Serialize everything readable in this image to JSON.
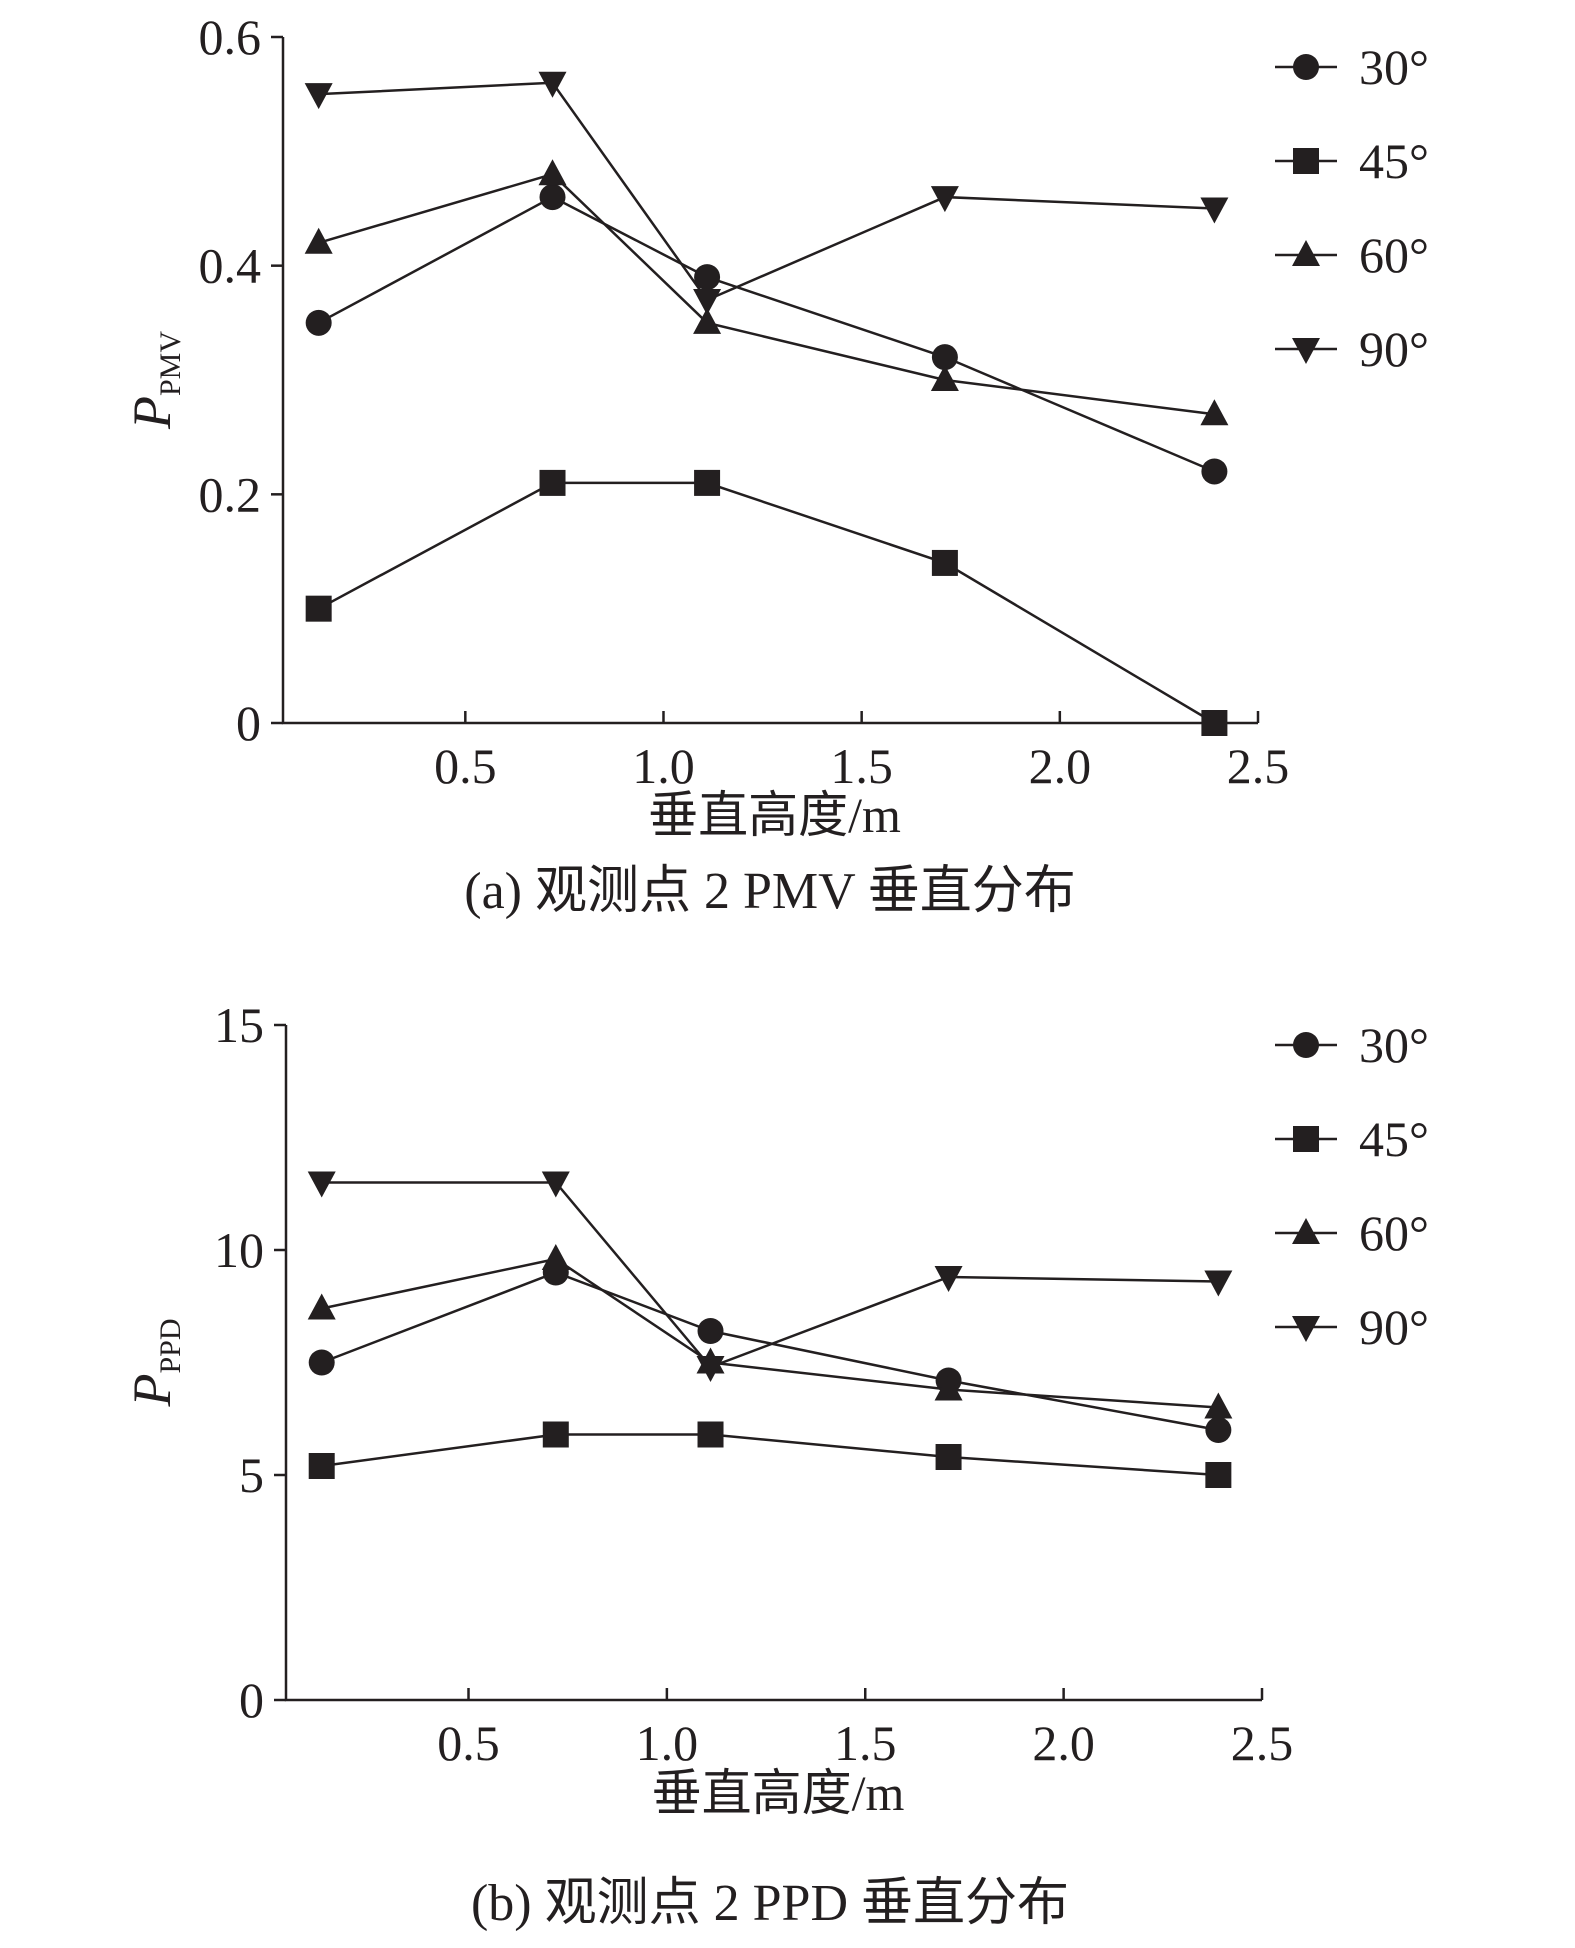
{
  "chart_data": [
    {
      "type": "line",
      "caption": "(a) 观测点 2 PMV 垂直分布",
      "xlabel": "垂直高度/m",
      "ylabel": "P",
      "ylabel_sub": "PMV",
      "xlim": [
        0.04,
        2.5
      ],
      "ylim": [
        0,
        0.6
      ],
      "xticks": [
        0.5,
        1.0,
        1.5,
        2.0,
        2.5
      ],
      "xtick_labels": [
        "0.5",
        "1.0",
        "1.5",
        "2.0",
        "2.5"
      ],
      "yticks": [
        0,
        0.2,
        0.4,
        0.6
      ],
      "ytick_labels": [
        "0",
        "0.2",
        "0.4",
        "0.6"
      ],
      "x": [
        0.13,
        0.72,
        1.11,
        1.71,
        2.39
      ],
      "legend_position": "top-right",
      "series": [
        {
          "name": "30°",
          "marker": "circle",
          "values": [
            0.35,
            0.46,
            0.39,
            0.32,
            0.22
          ]
        },
        {
          "name": "45°",
          "marker": "square",
          "values": [
            0.1,
            0.21,
            0.21,
            0.14,
            0.0
          ]
        },
        {
          "name": "60°",
          "marker": "triangle-up",
          "values": [
            0.42,
            0.48,
            0.35,
            0.3,
            0.27
          ]
        },
        {
          "name": "90°",
          "marker": "triangle-down",
          "values": [
            0.55,
            0.56,
            0.37,
            0.46,
            0.45
          ]
        }
      ]
    },
    {
      "type": "line",
      "caption": "(b) 观测点 2 PPD 垂直分布",
      "xlabel": "垂直高度/m",
      "ylabel": "P",
      "ylabel_sub": "PPD",
      "xlim": [
        0.04,
        2.5
      ],
      "ylim": [
        0,
        15
      ],
      "xticks": [
        0.5,
        1.0,
        1.5,
        2.0,
        2.5
      ],
      "xtick_labels": [
        "0.5",
        "1.0",
        "1.5",
        "2.0",
        "2.5"
      ],
      "yticks": [
        0,
        5,
        10,
        15
      ],
      "ytick_labels": [
        "0",
        "5",
        "10",
        "15"
      ],
      "x": [
        0.13,
        0.72,
        1.11,
        1.71,
        2.39
      ],
      "legend_position": "top-right",
      "series": [
        {
          "name": "30°",
          "marker": "circle",
          "values": [
            7.5,
            9.5,
            8.2,
            7.1,
            6.0
          ]
        },
        {
          "name": "45°",
          "marker": "square",
          "values": [
            5.2,
            5.9,
            5.9,
            5.4,
            5.0
          ]
        },
        {
          "name": "60°",
          "marker": "triangle-up",
          "values": [
            8.7,
            9.8,
            7.5,
            6.9,
            6.5
          ]
        },
        {
          "name": "90°",
          "marker": "triangle-down",
          "values": [
            11.5,
            11.5,
            7.4,
            9.4,
            9.3
          ]
        }
      ]
    }
  ]
}
